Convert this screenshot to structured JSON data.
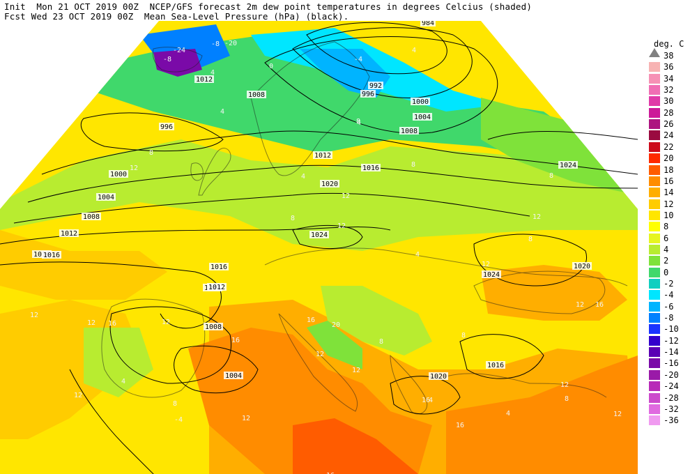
{
  "header": {
    "line1": "Init  Mon 21 OCT 2019 00Z  NCEP/GFS forecast 2m dew point temperatures in degrees Celcius (shaded)",
    "line2": "Fcst Wed 23 OCT 2019 00Z  Mean Sea-Level Pressure (hPa) (black)."
  },
  "legend": {
    "title": "deg. C",
    "labels": [
      "38",
      "36",
      "34",
      "32",
      "30",
      "28",
      "26",
      "24",
      "22",
      "20",
      "18",
      "16",
      "14",
      "12",
      "10",
      "8",
      "6",
      "4",
      "2",
      "0",
      "-2",
      "-4",
      "-6",
      "-8",
      "-10",
      "-12",
      "-14",
      "-16",
      "-20",
      "-24",
      "-28",
      "-32",
      "-36"
    ],
    "colors": [
      "#808080",
      "#f7b3b3",
      "#f691b5",
      "#f06eb4",
      "#e03aa8",
      "#cc1a99",
      "#ad1480",
      "#9a0a40",
      "#cc0a1a",
      "#ff2a00",
      "#ff5c00",
      "#ff8c00",
      "#ffae00",
      "#ffcc00",
      "#ffe600",
      "#ffff00",
      "#e6f520",
      "#b8ec30",
      "#7fe23a",
      "#40d86b",
      "#10cfc0",
      "#00e6ff",
      "#00b4ff",
      "#0080ff",
      "#1a33ff",
      "#3300cc",
      "#5a00b4",
      "#7a0aa8",
      "#9a1aa8",
      "#b82ab8",
      "#cc4acc",
      "#e06ae0",
      "#f09af0"
    ]
  },
  "isobar_labels": [
    "984",
    "1012",
    "1008",
    "996",
    "1000",
    "1004",
    "1008",
    "1012",
    "1016",
    "1016",
    "992",
    "996",
    "1000",
    "1004",
    "1008",
    "1012",
    "1016",
    "1020",
    "1024",
    "1024",
    "1020",
    "1024",
    "1024",
    "1016",
    "1012",
    "1008",
    "1004",
    "1020",
    "1016"
  ],
  "temp_labels": [
    "-24",
    "-8",
    "-20",
    "0",
    "4",
    "8",
    "4",
    "8",
    "-4",
    "4",
    "8",
    "8",
    "12",
    "4",
    "12",
    "12",
    "8",
    "12",
    "4",
    "12",
    "12",
    "16",
    "16",
    "20",
    "12",
    "16",
    "12",
    "16",
    "-8",
    "4",
    "8",
    "12",
    "12",
    "12",
    "16",
    "4",
    "12",
    "8",
    "-4",
    "4",
    "12",
    "8",
    "8",
    "16",
    "12",
    "16",
    "4",
    "8",
    "12"
  ]
}
